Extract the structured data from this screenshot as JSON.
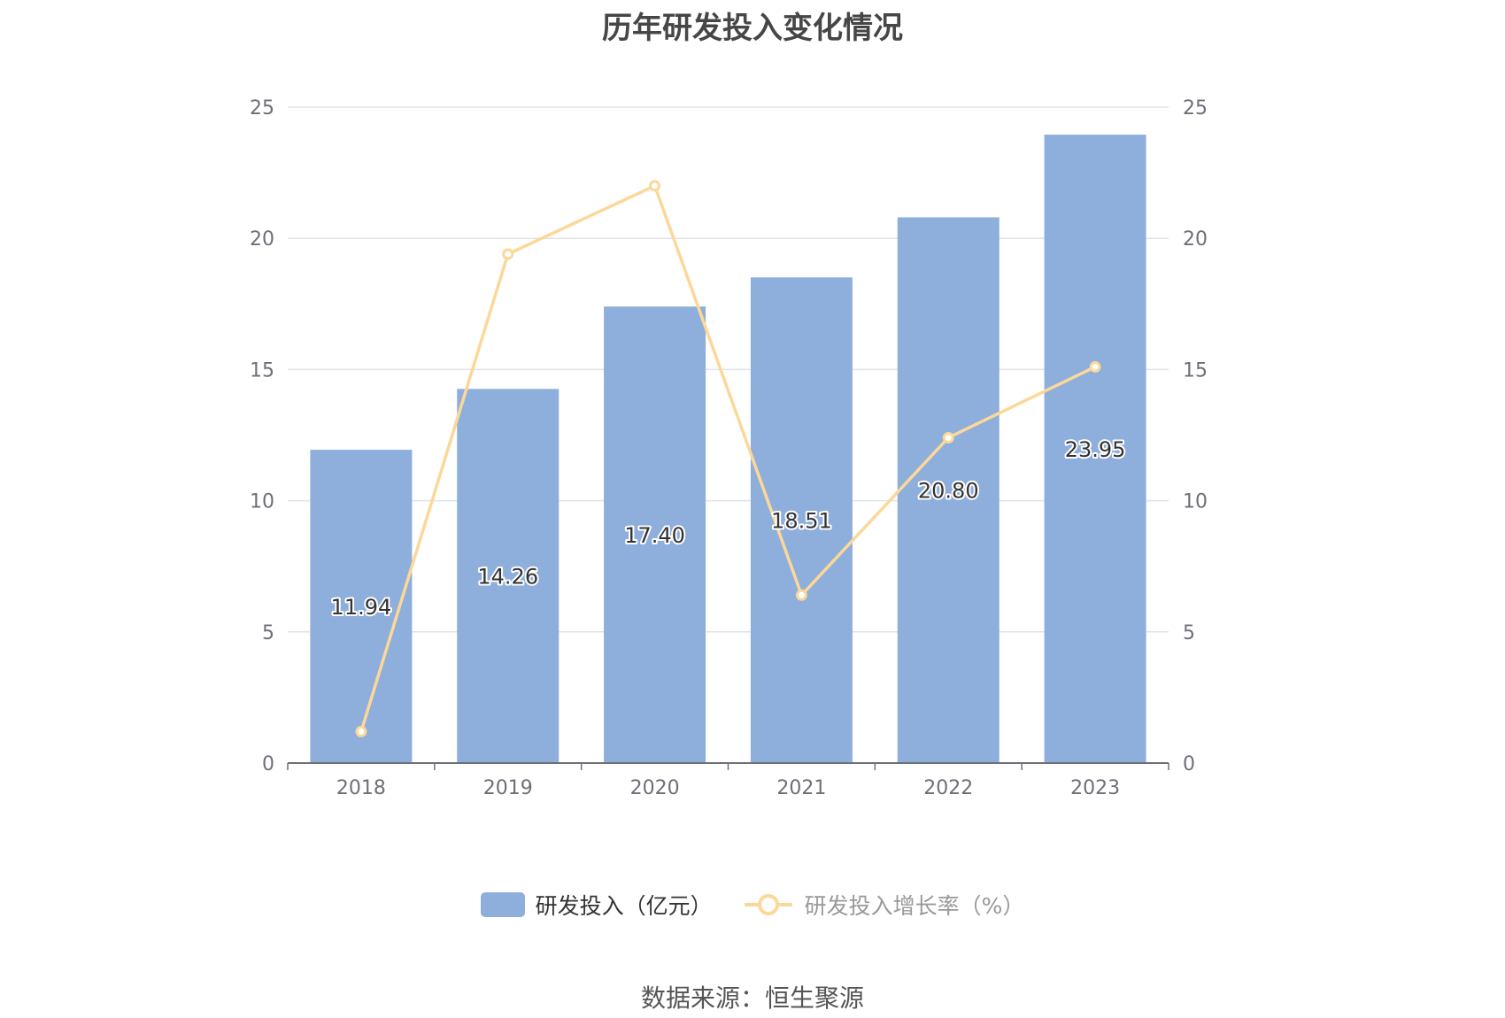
{
  "title": "历年研发投入变化情况",
  "source": "数据来源：恒生聚源",
  "colors": {
    "bar": "#8eaedb",
    "line": "#fbd899",
    "grid": "#e0e3ea",
    "axis": "#6e7079"
  },
  "chart_data": {
    "type": "bar",
    "categories": [
      "2018",
      "2019",
      "2020",
      "2021",
      "2022",
      "2023"
    ],
    "series": [
      {
        "name": "研发投入（亿元）",
        "type": "bar",
        "axis": "left",
        "values": [
          11.94,
          14.26,
          17.4,
          18.51,
          20.8,
          23.95
        ],
        "labels": [
          "11.94",
          "14.26",
          "17.40",
          "18.51",
          "20.80",
          "23.95"
        ]
      },
      {
        "name": "研发投入增长率（%）",
        "type": "line",
        "axis": "right",
        "values": [
          1.2,
          19.4,
          22.0,
          6.4,
          12.4,
          15.1
        ]
      }
    ],
    "y_left": {
      "min": 0,
      "max": 25,
      "ticks": [
        "0",
        "5",
        "10",
        "15",
        "20",
        "25"
      ]
    },
    "y_right": {
      "min": 0,
      "max": 25,
      "ticks": [
        "0",
        "5",
        "10",
        "15",
        "20",
        "25"
      ]
    },
    "grid": true,
    "legend": "bottom-center"
  }
}
